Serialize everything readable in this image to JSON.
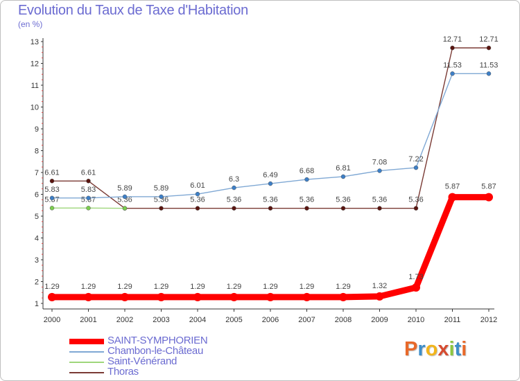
{
  "title": "Evolution du Taux de Taxe d'Habitation",
  "subtitle": "(en %)",
  "logo": {
    "letters": [
      "P",
      "r",
      "o",
      "x",
      "i",
      "t",
      "i"
    ],
    "colors": [
      "#e8692a",
      "#3d8ec9",
      "#f2b51c",
      "#d64b30",
      "#8cc63f",
      "#3d8ec9",
      "#e8692a"
    ]
  },
  "chart_data": {
    "type": "line",
    "title": "Evolution du Taux de Taxe d'Habitation",
    "ylabel": "(en %)",
    "x": [
      "2000",
      "2001",
      "2002",
      "2003",
      "2004",
      "2005",
      "2006",
      "2007",
      "2008",
      "2009",
      "2010",
      "2011",
      "2012"
    ],
    "ylim": [
      1,
      13
    ],
    "yticks": [
      "1",
      "2",
      "3",
      "4",
      "5",
      "6",
      "7",
      "8",
      "9",
      "10",
      "11",
      "12",
      "13"
    ],
    "grid": false,
    "legend_position": "bottom-left",
    "series": [
      {
        "name": "Thoras",
        "color": "#7a3a34",
        "marker_color": "#5a1510",
        "width": 1.4,
        "values": [
          6.61,
          6.61,
          5.36,
          5.36,
          5.36,
          5.36,
          5.36,
          5.36,
          5.36,
          5.36,
          5.36,
          12.71,
          12.71
        ],
        "labels": [
          "6.61",
          "6.61",
          "5.36",
          "5.36",
          "5.36",
          "5.36",
          "5.36",
          "5.36",
          "5.36",
          "5.36",
          "5.36",
          "12.71",
          "12.71"
        ]
      },
      {
        "name": "Saint-Vénérand",
        "color": "#9ed67a",
        "marker_color": "#7ccd4e",
        "width": 1.4,
        "values": [
          5.37,
          5.37,
          5.36,
          null,
          null,
          null,
          null,
          null,
          null,
          null,
          null,
          null,
          null
        ],
        "labels": [
          "5.37",
          "5.37",
          "",
          "",
          "",
          "",
          "",
          "",
          "",
          "",
          "",
          "",
          ""
        ]
      },
      {
        "name": "Chambon-le-Château",
        "color": "#7fa8d4",
        "marker_color": "#3d7fc7",
        "width": 1.4,
        "values": [
          5.83,
          5.83,
          5.89,
          5.89,
          6.01,
          6.3,
          6.49,
          6.68,
          6.81,
          7.08,
          7.22,
          11.53,
          11.53
        ],
        "labels": [
          "5.83",
          "5.83",
          "5.89",
          "5.89",
          "6.01",
          "6.3",
          "6.49",
          "6.68",
          "6.81",
          "7.08",
          "7.22",
          "11.53",
          "11.53"
        ]
      },
      {
        "name": "SAINT-SYMPHORIEN",
        "color": "#ff0000",
        "marker_color": "#ff0000",
        "width": 9,
        "values": [
          1.29,
          1.29,
          1.29,
          1.29,
          1.29,
          1.29,
          1.29,
          1.29,
          1.29,
          1.32,
          1.73,
          5.87,
          5.87
        ],
        "labels": [
          "1.29",
          "1.29",
          "1.29",
          "1.29",
          "1.29",
          "1.29",
          "1.29",
          "1.29",
          "1.29",
          "1.32",
          "1.73",
          "5.87",
          "5.87"
        ]
      }
    ],
    "legend_order": [
      "SAINT-SYMPHORIEN",
      "Chambon-le-Château",
      "Saint-Vénérand",
      "Thoras"
    ]
  }
}
